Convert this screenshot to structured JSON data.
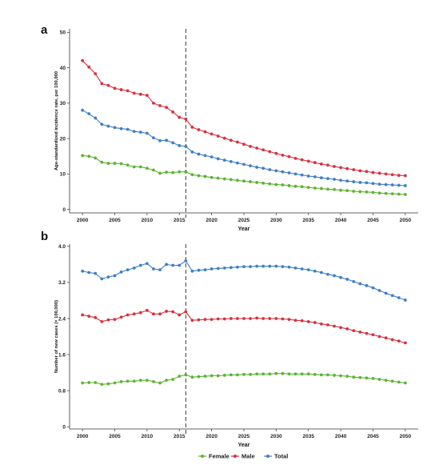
{
  "figure": {
    "legend": {
      "placement": "bottom-center",
      "entries": [
        {
          "name": "Female",
          "color": "#5ab52f"
        },
        {
          "name": "Male",
          "color": "#d7313f"
        },
        {
          "name": "Total",
          "color": "#3d7fc6"
        }
      ]
    }
  },
  "chart_data": [
    {
      "type": "line",
      "panel_label": "a",
      "xlabel": "Year",
      "ylabel": "Age-standardized incidence rate, per 100,000",
      "xlim": [
        1998,
        2052
      ],
      "ylim": [
        -1,
        51
      ],
      "xticks": [
        2000,
        2005,
        2010,
        2015,
        2020,
        2025,
        2030,
        2035,
        2040,
        2045,
        2050
      ],
      "yticks": [
        0,
        10,
        20,
        30,
        40,
        50
      ],
      "ytick_labels": [
        "0",
        "10",
        "20",
        "30",
        "40",
        "50"
      ],
      "grid": false,
      "reference_line": {
        "x": 2016,
        "style": "dashed"
      },
      "x": [
        2000,
        2001,
        2002,
        2003,
        2004,
        2005,
        2006,
        2007,
        2008,
        2009,
        2010,
        2011,
        2012,
        2013,
        2014,
        2015,
        2016,
        2017,
        2018,
        2019,
        2020,
        2021,
        2022,
        2023,
        2024,
        2025,
        2026,
        2027,
        2028,
        2029,
        2030,
        2031,
        2032,
        2033,
        2034,
        2035,
        2036,
        2037,
        2038,
        2039,
        2040,
        2041,
        2042,
        2043,
        2044,
        2045,
        2046,
        2047,
        2048,
        2049,
        2050
      ],
      "series": [
        {
          "name": "Male",
          "color": "#d7313f",
          "values": [
            42.0,
            40.2,
            38.3,
            35.5,
            35.0,
            34.2,
            33.8,
            33.5,
            32.8,
            32.5,
            32.2,
            30.0,
            29.3,
            28.8,
            27.5,
            26.0,
            25.5,
            23.2,
            22.5,
            21.9,
            21.3,
            20.7,
            20.1,
            19.5,
            19.0,
            18.4,
            17.8,
            17.3,
            16.8,
            16.3,
            15.8,
            15.3,
            14.9,
            14.4,
            14.0,
            13.6,
            13.2,
            12.8,
            12.5,
            12.1,
            11.8,
            11.5,
            11.2,
            10.9,
            10.7,
            10.4,
            10.2,
            10.0,
            9.8,
            9.6,
            9.5
          ]
        },
        {
          "name": "Total",
          "color": "#3d7fc6",
          "values": [
            28.0,
            27.0,
            25.8,
            24.0,
            23.5,
            23.1,
            22.8,
            22.6,
            22.0,
            21.8,
            21.5,
            20.2,
            19.4,
            19.5,
            18.8,
            18.0,
            17.8,
            16.2,
            15.6,
            15.2,
            14.8,
            14.3,
            13.9,
            13.5,
            13.1,
            12.7,
            12.3,
            11.9,
            11.6,
            11.2,
            10.9,
            10.6,
            10.3,
            10.0,
            9.7,
            9.4,
            9.2,
            8.9,
            8.7,
            8.5,
            8.2,
            8.0,
            7.8,
            7.6,
            7.5,
            7.3,
            7.1,
            7.0,
            6.9,
            6.8,
            6.7
          ]
        },
        {
          "name": "Female",
          "color": "#5ab52f",
          "values": [
            15.2,
            15.0,
            14.5,
            13.3,
            13.0,
            13.0,
            12.9,
            12.5,
            12.0,
            12.0,
            11.6,
            11.1,
            10.2,
            10.5,
            10.4,
            10.6,
            10.6,
            9.8,
            9.5,
            9.3,
            9.0,
            8.8,
            8.6,
            8.4,
            8.2,
            8.0,
            7.8,
            7.6,
            7.4,
            7.2,
            7.0,
            6.9,
            6.7,
            6.5,
            6.4,
            6.2,
            6.0,
            5.9,
            5.7,
            5.6,
            5.4,
            5.3,
            5.1,
            5.0,
            4.9,
            4.8,
            4.6,
            4.5,
            4.4,
            4.3,
            4.2
          ]
        }
      ]
    },
    {
      "type": "line",
      "panel_label": "b",
      "xlabel": "Year",
      "ylabel": "Number of new cases (× 100,000)",
      "xlim": [
        1998,
        2052
      ],
      "ylim": [
        -0.05,
        4.05
      ],
      "xticks": [
        2000,
        2005,
        2010,
        2015,
        2020,
        2025,
        2030,
        2035,
        2040,
        2045,
        2050
      ],
      "yticks": [
        0,
        0.8,
        1.6,
        2.4,
        3.2,
        4.0
      ],
      "ytick_labels": [
        "0",
        "0.8",
        "1.6",
        "2.4",
        "3.2",
        "4.0"
      ],
      "grid": false,
      "reference_line": {
        "x": 2016,
        "style": "dashed"
      },
      "x": [
        2000,
        2001,
        2002,
        2003,
        2004,
        2005,
        2006,
        2007,
        2008,
        2009,
        2010,
        2011,
        2012,
        2013,
        2014,
        2015,
        2016,
        2017,
        2018,
        2019,
        2020,
        2021,
        2022,
        2023,
        2024,
        2025,
        2026,
        2027,
        2028,
        2029,
        2030,
        2031,
        2032,
        2033,
        2034,
        2035,
        2036,
        2037,
        2038,
        2039,
        2040,
        2041,
        2042,
        2043,
        2044,
        2045,
        2046,
        2047,
        2048,
        2049,
        2050
      ],
      "series": [
        {
          "name": "Total",
          "color": "#3d7fc6",
          "values": [
            3.45,
            3.42,
            3.4,
            3.28,
            3.32,
            3.35,
            3.43,
            3.48,
            3.52,
            3.58,
            3.62,
            3.5,
            3.48,
            3.6,
            3.58,
            3.58,
            3.68,
            3.45,
            3.47,
            3.48,
            3.5,
            3.51,
            3.52,
            3.53,
            3.54,
            3.55,
            3.55,
            3.56,
            3.56,
            3.56,
            3.56,
            3.55,
            3.54,
            3.52,
            3.5,
            3.48,
            3.45,
            3.42,
            3.38,
            3.35,
            3.31,
            3.27,
            3.22,
            3.17,
            3.13,
            3.08,
            3.02,
            2.96,
            2.91,
            2.86,
            2.81
          ]
        },
        {
          "name": "Male",
          "color": "#d7313f",
          "values": [
            2.48,
            2.45,
            2.42,
            2.33,
            2.37,
            2.38,
            2.43,
            2.48,
            2.5,
            2.53,
            2.58,
            2.5,
            2.5,
            2.56,
            2.55,
            2.48,
            2.55,
            2.36,
            2.37,
            2.38,
            2.38,
            2.39,
            2.39,
            2.4,
            2.4,
            2.4,
            2.4,
            2.41,
            2.4,
            2.4,
            2.4,
            2.39,
            2.38,
            2.36,
            2.35,
            2.33,
            2.31,
            2.28,
            2.26,
            2.23,
            2.2,
            2.17,
            2.13,
            2.1,
            2.07,
            2.04,
            2.0,
            1.97,
            1.93,
            1.9,
            1.86
          ]
        },
        {
          "name": "Female",
          "color": "#5ab52f",
          "values": [
            0.97,
            0.98,
            0.98,
            0.94,
            0.95,
            0.97,
            1.0,
            1.01,
            1.01,
            1.03,
            1.03,
            1.0,
            0.97,
            1.03,
            1.05,
            1.12,
            1.15,
            1.1,
            1.11,
            1.12,
            1.13,
            1.13,
            1.14,
            1.15,
            1.15,
            1.16,
            1.16,
            1.17,
            1.17,
            1.17,
            1.18,
            1.18,
            1.17,
            1.17,
            1.17,
            1.17,
            1.16,
            1.15,
            1.15,
            1.14,
            1.13,
            1.12,
            1.1,
            1.09,
            1.08,
            1.07,
            1.05,
            1.03,
            1.01,
            0.99,
            0.97
          ]
        }
      ]
    }
  ]
}
